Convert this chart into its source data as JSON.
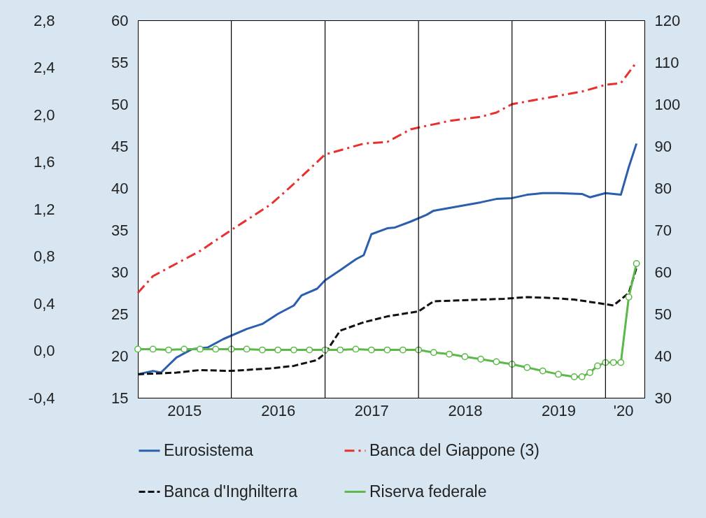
{
  "chart_data": {
    "type": "line",
    "xlim": [
      "2015-01-01",
      "2020-06-01"
    ],
    "xticks": [
      {
        "value": "2015-07-01",
        "label": "2015"
      },
      {
        "value": "2016-07-01",
        "label": "2016"
      },
      {
        "value": "2017-07-01",
        "label": "2017"
      },
      {
        "value": "2018-07-01",
        "label": "2018"
      },
      {
        "value": "2019-07-01",
        "label": "2019"
      },
      {
        "value": "2020-03-10",
        "label": "'20"
      }
    ],
    "ylim": [
      15,
      60
    ],
    "yticks": [
      15,
      20,
      25,
      30,
      35,
      40,
      45,
      50,
      55,
      60
    ],
    "y2lim": [
      30,
      120
    ],
    "y2ticks": [
      30,
      40,
      50,
      60,
      70,
      80,
      90,
      100,
      110,
      120
    ],
    "y3lim": [
      -0.4,
      2.8
    ],
    "y3ticks": [
      {
        "value": -0.4,
        "label": "-0,4"
      },
      {
        "value": 0,
        "label": "0,0"
      },
      {
        "value": 0.4,
        "label": "0,4"
      },
      {
        "value": 0.8,
        "label": "0,8"
      },
      {
        "value": 1.2,
        "label": "1,2"
      },
      {
        "value": 1.6,
        "label": "1,6"
      },
      {
        "value": 2.0,
        "label": "2,0"
      },
      {
        "value": 2.4,
        "label": "2,4"
      },
      {
        "value": 2.8,
        "label": "2,8"
      }
    ],
    "grid": false,
    "legend": "bottom",
    "ref_lines": [
      {
        "axis": "x",
        "value": "2016-01-01",
        "label": null,
        "color": "#000000"
      },
      {
        "axis": "x",
        "value": "2017-01-01",
        "label": null,
        "color": "#000000"
      },
      {
        "axis": "x",
        "value": "2018-01-01",
        "label": null,
        "color": "#000000"
      },
      {
        "axis": "x",
        "value": "2019-01-01",
        "label": null,
        "color": "#000000"
      },
      {
        "axis": "x",
        "value": "2020-01-01",
        "label": null,
        "color": "#000000"
      }
    ],
    "series": [
      {
        "name": "Eurosistema",
        "color": "#2b5fae",
        "line_style": "solid",
        "marker": "none",
        "x": [
          "2015-01",
          "2015-03",
          "2015-04",
          "2015-06",
          "2015-08",
          "2015-10",
          "2015-12",
          "2016-03",
          "2016-05",
          "2016-07",
          "2016-09",
          "2016-10",
          "2016-12",
          "2017-01",
          "2017-03",
          "2017-05",
          "2017-06",
          "2017-07",
          "2017-09",
          "2017-10",
          "2017-12",
          "2018-02",
          "2018-03",
          "2018-06",
          "2018-09",
          "2018-11",
          "2019-01",
          "2019-03",
          "2019-05",
          "2019-07",
          "2019-10",
          "2019-11",
          "2020-01",
          "2020-03",
          "2020-04",
          "2020-05"
        ],
        "values": [
          17.8,
          18.2,
          18.0,
          19.8,
          20.8,
          21.0,
          22.0,
          23.2,
          23.8,
          25.0,
          26.0,
          27.2,
          28.0,
          29.0,
          30.2,
          31.5,
          32.0,
          34.5,
          35.2,
          35.3,
          36.0,
          36.8,
          37.3,
          37.8,
          38.3,
          38.7,
          38.8,
          39.2,
          39.4,
          39.4,
          39.3,
          38.9,
          39.4,
          39.2,
          42.5,
          45.3
        ]
      },
      {
        "name": "Banca del Giappone (3)",
        "color": "#e8302e",
        "line_style": "dashdot",
        "marker": "none",
        "axis": "y2",
        "x": [
          "2015-01",
          "2015-03",
          "2015-06",
          "2015-09",
          "2016-01",
          "2016-06",
          "2016-09",
          "2017-01",
          "2017-03",
          "2017-06",
          "2017-09",
          "2017-12",
          "2018-05",
          "2018-09",
          "2018-11",
          "2019-01",
          "2019-04",
          "2019-07",
          "2019-10",
          "2020-01",
          "2020-03",
          "2020-05"
        ],
        "values": [
          55,
          59,
          62,
          65,
          70,
          76,
          81,
          88,
          89,
          90.6,
          91,
          94,
          96,
          97,
          98,
          100,
          101,
          102,
          103,
          104.6,
          105,
          110
        ]
      },
      {
        "name": "Banca d'Inghilterra",
        "color": "#111111",
        "line_style": "dashed",
        "marker": "none",
        "x": [
          "2015-01",
          "2015-06",
          "2015-09",
          "2016-01",
          "2016-06",
          "2016-09",
          "2016-12",
          "2017-01",
          "2017-03",
          "2017-06",
          "2017-09",
          "2018-01",
          "2018-03",
          "2018-06",
          "2018-12",
          "2019-03",
          "2019-06",
          "2019-09",
          "2019-12",
          "2020-02",
          "2020-04",
          "2020-05"
        ],
        "values": [
          17.8,
          18.0,
          18.3,
          18.2,
          18.5,
          18.8,
          19.5,
          20.3,
          23.0,
          24.0,
          24.7,
          25.3,
          26.5,
          26.6,
          26.8,
          27.0,
          26.9,
          26.7,
          26.3,
          26.0,
          27.5,
          30.5
        ]
      },
      {
        "name": "Riserva federale",
        "color": "#5cb848",
        "line_style": "solid",
        "marker": "circle",
        "x": [
          "2015-01",
          "2015-03",
          "2015-05",
          "2015-07",
          "2015-09",
          "2015-11",
          "2016-01",
          "2016-03",
          "2016-05",
          "2016-07",
          "2016-09",
          "2016-11",
          "2017-01",
          "2017-03",
          "2017-05",
          "2017-07",
          "2017-09",
          "2017-11",
          "2018-01",
          "2018-03",
          "2018-05",
          "2018-07",
          "2018-09",
          "2018-11",
          "2019-01",
          "2019-03",
          "2019-05",
          "2019-07",
          "2019-09",
          "2019-10",
          "2019-11",
          "2019-12",
          "2020-01",
          "2020-02",
          "2020-03",
          "2020-04",
          "2020-05"
        ],
        "values": [
          20.8,
          20.8,
          20.7,
          20.8,
          20.8,
          20.8,
          20.8,
          20.8,
          20.7,
          20.7,
          20.7,
          20.7,
          20.7,
          20.7,
          20.8,
          20.7,
          20.7,
          20.7,
          20.7,
          20.4,
          20.2,
          19.9,
          19.6,
          19.3,
          19.0,
          18.6,
          18.2,
          17.8,
          17.5,
          17.5,
          18.0,
          18.8,
          19.2,
          19.2,
          19.2,
          27.0,
          31.0
        ]
      }
    ]
  }
}
